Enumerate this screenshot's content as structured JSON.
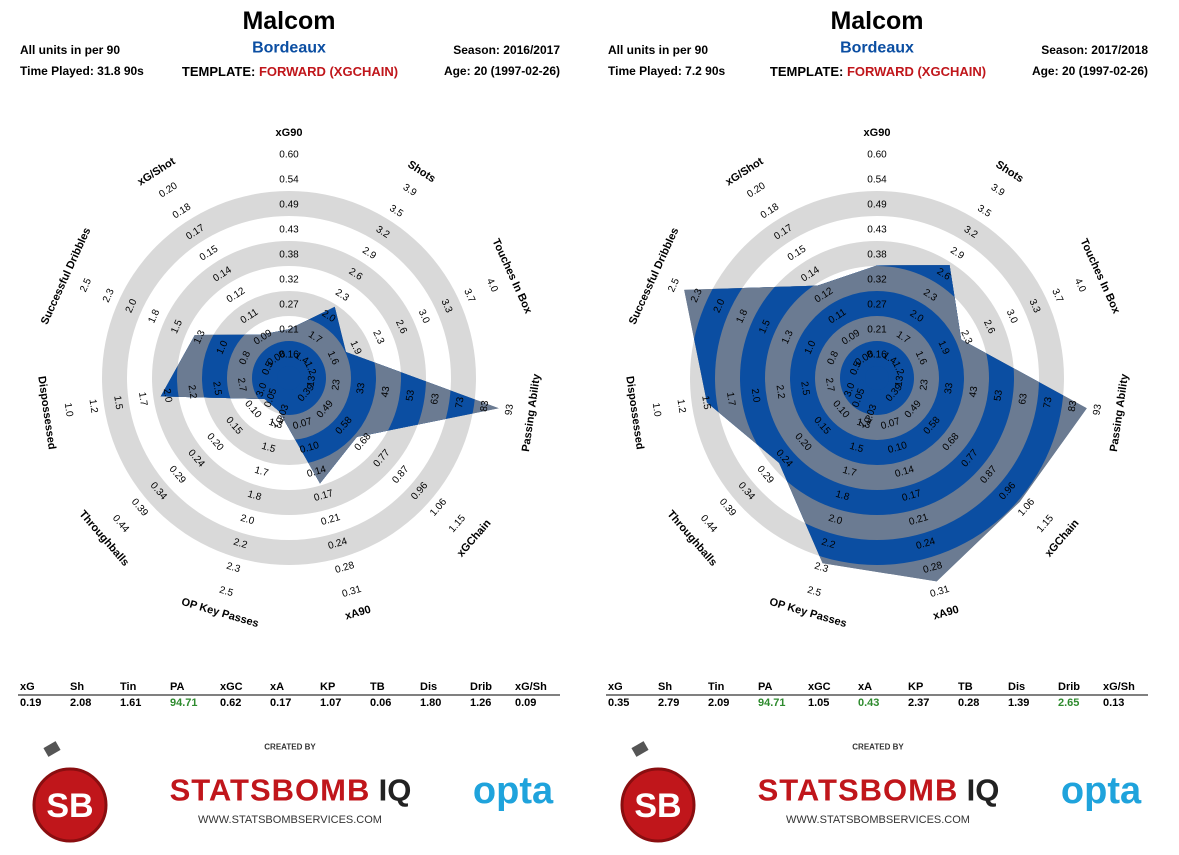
{
  "colors": {
    "accent": "#0b4ea2",
    "red": "#c0161b",
    "green": "#2e8b2e",
    "grey": "#d9d9d9",
    "poly": "#6b7b92",
    "opta": "#1fa3dc"
  },
  "panels": [
    {
      "player": "Malcom",
      "team": "Bordeaux",
      "units": "All units in per 90",
      "played": "Time Played: 31.8 90s",
      "template_label": "TEMPLATE: ",
      "template_value": "FORWARD (XGCHAIN)",
      "season": "Season: 2016/2017",
      "age": "Age: 20 (1997-02-26)",
      "stats": [
        {
          "k": "xG",
          "v": "0.19",
          "green": false
        },
        {
          "k": "Sh",
          "v": "2.08",
          "green": false
        },
        {
          "k": "Tin",
          "v": "1.61",
          "green": false
        },
        {
          "k": "PA",
          "v": "94.71",
          "green": true
        },
        {
          "k": "xGC",
          "v": "0.62",
          "green": false
        },
        {
          "k": "xA",
          "v": "0.17",
          "green": false
        },
        {
          "k": "KP",
          "v": "1.07",
          "green": false
        },
        {
          "k": "TB",
          "v": "0.06",
          "green": false
        },
        {
          "k": "Dis",
          "v": "1.80",
          "green": false
        },
        {
          "k": "Drib",
          "v": "1.26",
          "green": false
        },
        {
          "k": "xG/Sh",
          "v": "0.09",
          "green": false
        }
      ],
      "footer": {
        "created_by": "CREATED BY",
        "brand_a": "STATSBOMB",
        "brand_b": "IQ",
        "url": "WWW.STATSBOMBSERVICES.COM",
        "opta": "opta",
        "sb": "SB"
      }
    },
    {
      "player": "Malcom",
      "team": "Bordeaux",
      "units": "All units in per 90",
      "played": "Time Played: 7.2 90s",
      "template_label": "TEMPLATE: ",
      "template_value": "FORWARD (XGCHAIN)",
      "season": "Season: 2017/2018",
      "age": "Age: 20 (1997-02-26)",
      "stats": [
        {
          "k": "xG",
          "v": "0.35",
          "green": false
        },
        {
          "k": "Sh",
          "v": "2.79",
          "green": false
        },
        {
          "k": "Tin",
          "v": "2.09",
          "green": false
        },
        {
          "k": "PA",
          "v": "94.71",
          "green": true
        },
        {
          "k": "xGC",
          "v": "1.05",
          "green": false
        },
        {
          "k": "xA",
          "v": "0.43",
          "green": true
        },
        {
          "k": "KP",
          "v": "2.37",
          "green": false
        },
        {
          "k": "TB",
          "v": "0.28",
          "green": false
        },
        {
          "k": "Dis",
          "v": "1.39",
          "green": false
        },
        {
          "k": "Drib",
          "v": "2.65",
          "green": true
        },
        {
          "k": "xG/Sh",
          "v": "0.13",
          "green": false
        }
      ],
      "footer": {
        "created_by": "CREATED BY",
        "brand_a": "STATSBOMB",
        "brand_b": "IQ",
        "url": "WWW.STATSBOMBSERVICES.COM",
        "opta": "opta",
        "sb": "SB"
      }
    }
  ],
  "chart_data": [
    {
      "type": "radar",
      "axes": [
        {
          "label": "xG90",
          "ticks": [
            "0.16",
            "0.21",
            "0.27",
            "0.32",
            "0.38",
            "0.43",
            "0.49",
            "0.54",
            "0.60"
          ],
          "value": 0.19
        },
        {
          "label": "Shots",
          "ticks": [
            "1.4",
            "1.7",
            "2.0",
            "2.3",
            "2.6",
            "2.9",
            "3.2",
            "3.5",
            "3.9"
          ],
          "value": 2.08
        },
        {
          "label": "Touches In Box",
          "ticks": [
            "1.2",
            "1.6",
            "1.9",
            "2.3",
            "2.6",
            "3.0",
            "3.3",
            "3.7",
            "4.0"
          ],
          "value": 1.61
        },
        {
          "label": "Passing Ability",
          "ticks": [
            "13",
            "23",
            "33",
            "43",
            "53",
            "63",
            "73",
            "83",
            "93"
          ],
          "value": 94.71
        },
        {
          "label": "xGChain",
          "ticks": [
            "0.39",
            "0.49",
            "0.58",
            "0.68",
            "0.77",
            "0.87",
            "0.96",
            "1.06",
            "1.15"
          ],
          "value": 0.62
        },
        {
          "label": "xA90",
          "ticks": [
            "0.07",
            "0.10",
            "0.14",
            "0.17",
            "0.21",
            "0.24",
            "0.28",
            "0.31"
          ],
          "value": 0.17
        },
        {
          "label": "OP Key Passes",
          "ticks": [
            "1.3",
            "1.5",
            "1.7",
            "1.8",
            "2.0",
            "2.2",
            "2.3",
            "2.5"
          ],
          "value": 1.07
        },
        {
          "label": "Throughballs",
          "ticks": [
            "0.10",
            "0.15",
            "0.20",
            "0.24",
            "0.29",
            "0.34",
            "0.39",
            "0.44"
          ],
          "value": 0.06
        },
        {
          "label": "Dispossessed",
          "ticks": [
            "2.7",
            "2.5",
            "2.2",
            "2.0",
            "1.7",
            "1.5",
            "1.2",
            "1.0"
          ],
          "value": 1.8
        },
        {
          "label": "Successful Dribbles",
          "ticks": [
            "0.5",
            "0.8",
            "1.0",
            "1.3",
            "1.5",
            "1.8",
            "2.0",
            "2.3",
            "2.5"
          ],
          "value": 1.26
        },
        {
          "label": "xG/Shot",
          "ticks": [
            "0.08",
            "0.09",
            "0.11",
            "0.12",
            "0.14",
            "0.15",
            "0.17",
            "0.18",
            "0.20"
          ],
          "value": 0.09
        }
      ],
      "center_ticks": [
        "0.03",
        "3.0",
        "0.05",
        "1.2"
      ]
    },
    {
      "type": "radar",
      "axes": [
        {
          "label": "xG90",
          "ticks": [
            "0.16",
            "0.21",
            "0.27",
            "0.32",
            "0.38",
            "0.43",
            "0.49",
            "0.54",
            "0.60"
          ],
          "value": 0.35
        },
        {
          "label": "Shots",
          "ticks": [
            "1.4",
            "1.7",
            "2.0",
            "2.3",
            "2.6",
            "2.9",
            "3.2",
            "3.5",
            "3.9"
          ],
          "value": 2.79
        },
        {
          "label": "Touches In Box",
          "ticks": [
            "1.2",
            "1.6",
            "1.9",
            "2.3",
            "2.6",
            "3.0",
            "3.3",
            "3.7",
            "4.0"
          ],
          "value": 2.09
        },
        {
          "label": "Passing Ability",
          "ticks": [
            "13",
            "23",
            "33",
            "43",
            "53",
            "63",
            "73",
            "83",
            "93"
          ],
          "value": 94.71
        },
        {
          "label": "xGChain",
          "ticks": [
            "0.39",
            "0.49",
            "0.58",
            "0.68",
            "0.77",
            "0.87",
            "0.96",
            "1.06",
            "1.15"
          ],
          "value": 1.05
        },
        {
          "label": "xA90",
          "ticks": [
            "0.07",
            "0.10",
            "0.14",
            "0.17",
            "0.21",
            "0.24",
            "0.28",
            "0.31"
          ],
          "value": 0.43
        },
        {
          "label": "OP Key Passes",
          "ticks": [
            "1.3",
            "1.5",
            "1.7",
            "1.8",
            "2.0",
            "2.2",
            "2.3",
            "2.5"
          ],
          "value": 2.37
        },
        {
          "label": "Throughballs",
          "ticks": [
            "0.10",
            "0.15",
            "0.20",
            "0.24",
            "0.29",
            "0.34",
            "0.39",
            "0.44"
          ],
          "value": 0.28
        },
        {
          "label": "Dispossessed",
          "ticks": [
            "2.7",
            "2.5",
            "2.2",
            "2.0",
            "1.7",
            "1.5",
            "1.2",
            "1.0"
          ],
          "value": 1.39
        },
        {
          "label": "Successful Dribbles",
          "ticks": [
            "0.5",
            "0.8",
            "1.0",
            "1.3",
            "1.5",
            "1.8",
            "2.0",
            "2.3",
            "2.5"
          ],
          "value": 2.65
        },
        {
          "label": "xG/Shot",
          "ticks": [
            "0.08",
            "0.09",
            "0.11",
            "0.12",
            "0.14",
            "0.15",
            "0.17",
            "0.18",
            "0.20"
          ],
          "value": 0.13
        }
      ],
      "center_ticks": [
        "0.03",
        "3.0",
        "0.05",
        "1.2"
      ]
    }
  ]
}
